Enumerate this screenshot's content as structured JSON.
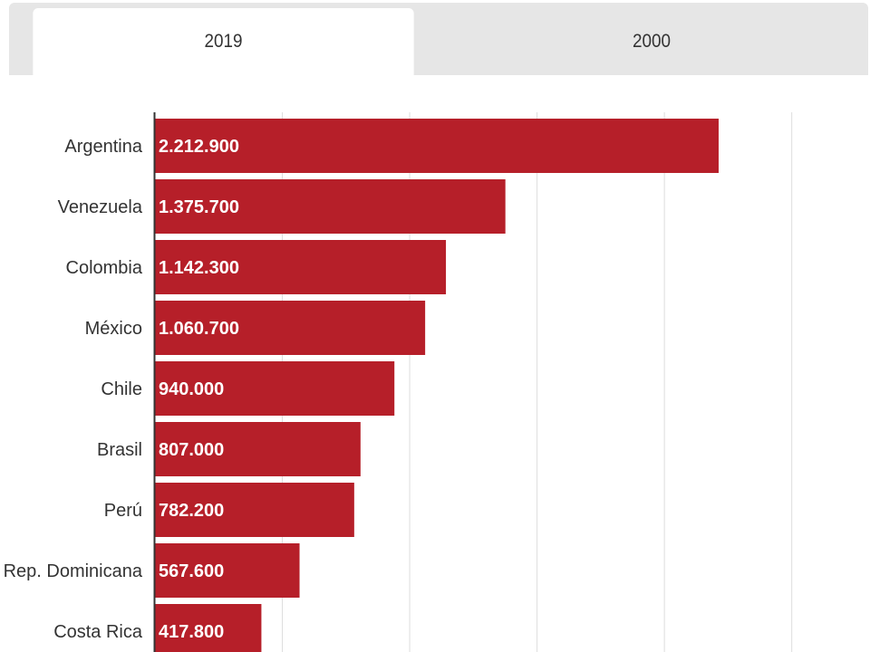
{
  "tabs": [
    {
      "label": "2019",
      "active": true
    },
    {
      "label": "2000",
      "active": false
    }
  ],
  "colors": {
    "bar": "#b61f29",
    "grid": "#dddddd",
    "axis": "#333333"
  },
  "chart_data": {
    "type": "bar",
    "orientation": "horizontal",
    "title": "",
    "xlabel": "",
    "ylabel": "",
    "xlim": [
      0,
      2800000
    ],
    "grid": true,
    "categories": [
      "Argentina",
      "Venezuela",
      "Colombia",
      "México",
      "Chile",
      "Brasil",
      "Perú",
      "Rep. Dominicana",
      "Costa Rica"
    ],
    "values": [
      2212900,
      1375700,
      1142300,
      1060700,
      940000,
      807000,
      782200,
      567600,
      417800
    ],
    "value_labels": [
      "2.212.900",
      "1.375.700",
      "1.142.300",
      "1.060.700",
      "940.000",
      "807.000",
      "782.200",
      "567.600",
      "417.800"
    ]
  }
}
